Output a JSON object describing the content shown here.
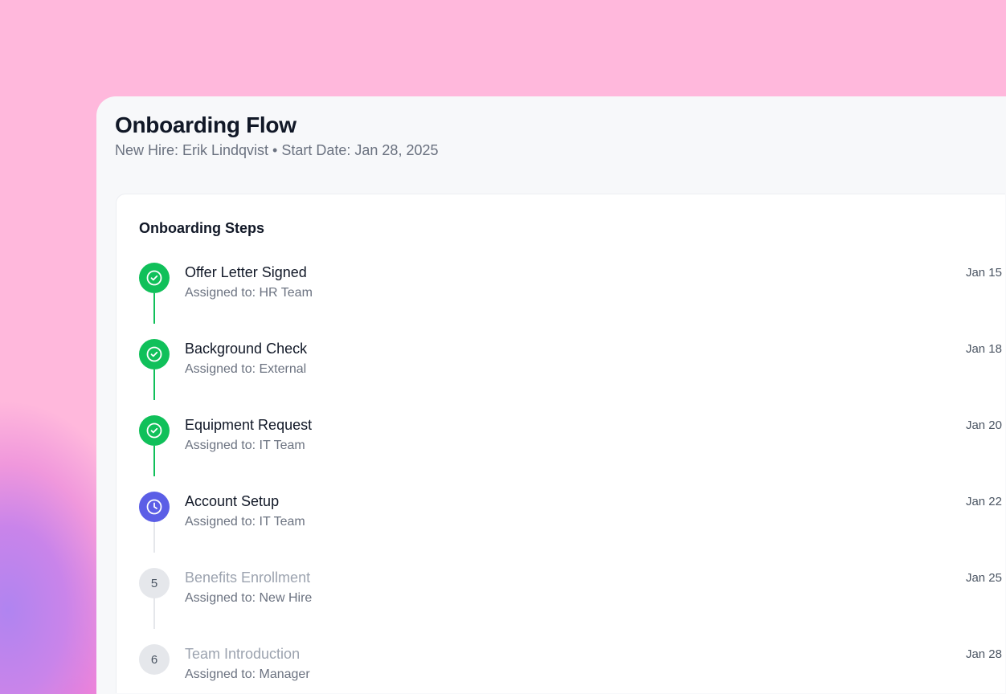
{
  "header": {
    "title": "Onboarding Flow",
    "subtitle": "New Hire: Erik Lindqvist • Start Date: Jan 28, 2025"
  },
  "colors": {
    "completed": "#10c05a",
    "in_progress": "#5b5ee6",
    "pending": "#e5e7eb"
  },
  "steps_card": {
    "title": "Onboarding Steps",
    "steps": [
      {
        "title": "Offer Letter Signed",
        "assigned": "Assigned to: HR Team",
        "date": "Jan 15",
        "status": "completed",
        "icon": "check-circle-icon"
      },
      {
        "title": "Background Check",
        "assigned": "Assigned to: External",
        "date": "Jan 18",
        "status": "completed",
        "icon": "check-circle-icon"
      },
      {
        "title": "Equipment Request",
        "assigned": "Assigned to: IT Team",
        "date": "Jan 20",
        "status": "completed",
        "icon": "check-circle-icon"
      },
      {
        "title": "Account Setup",
        "assigned": "Assigned to: IT Team",
        "date": "Jan 22",
        "status": "in-progress",
        "icon": "clock-icon"
      },
      {
        "title": "Benefits Enrollment",
        "assigned": "Assigned to: New Hire",
        "date": "Jan 25",
        "status": "pending",
        "number": "5"
      },
      {
        "title": "Team Introduction",
        "assigned": "Assigned to: Manager",
        "date": "Jan 28",
        "status": "pending",
        "number": "6"
      }
    ]
  }
}
